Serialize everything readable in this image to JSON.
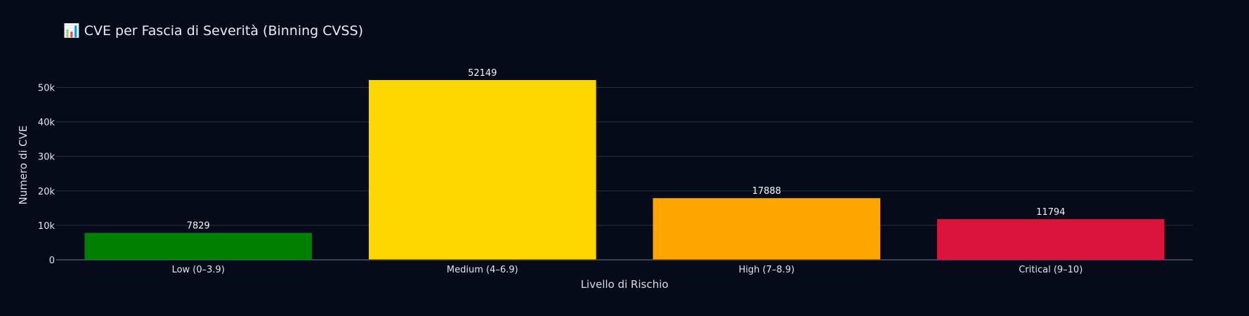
{
  "chart_data": {
    "type": "bar",
    "title": "📊 CVE per Fascia di Severità (Binning CVSS)",
    "xlabel": "Livello di Rischio",
    "ylabel": "Numero di CVE",
    "categories": [
      "Low (0–3.9)",
      "Medium (4–6.9)",
      "High (7–8.9)",
      "Critical (9–10)"
    ],
    "values": [
      7829,
      52149,
      17888,
      11794
    ],
    "data_labels": [
      "7829",
      "52149",
      "17888",
      "11794"
    ],
    "colors": [
      "#008000",
      "#ffd700",
      "#ffa500",
      "#dc143c"
    ],
    "ylim": [
      0,
      55000
    ],
    "yticks": [
      0,
      10000,
      20000,
      30000,
      40000,
      50000
    ],
    "ytick_labels": [
      "0",
      "10k",
      "20k",
      "30k",
      "40k",
      "50k"
    ],
    "grid": true,
    "legend": "none",
    "background": "#060b19"
  }
}
